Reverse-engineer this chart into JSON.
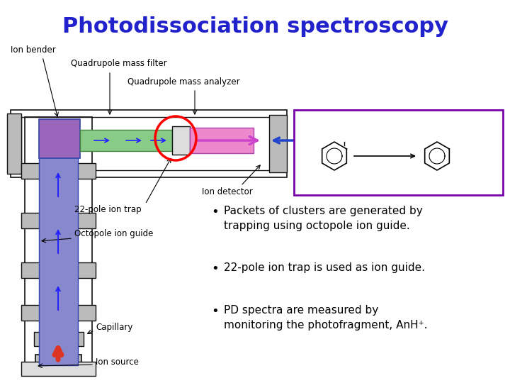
{
  "title": "Photodissociation spectroscopy",
  "title_color": "#2222CC",
  "title_fontsize": 22,
  "title_bold": true,
  "background_color": "#ffffff",
  "bullet_points": [
    "Packets of clusters are generated by\ntrapping using octopole ion guide.",
    "22-pole ion trap is used as ion guide.",
    "PD spectra are measured by\nmonitoring the photofragment, AnH⁺."
  ],
  "bullet_fontsize": 11.5,
  "bullet_color": "#000000",
  "fig_width": 7.2,
  "fig_height": 5.4
}
